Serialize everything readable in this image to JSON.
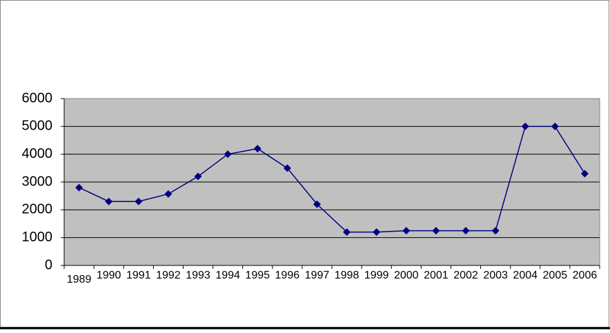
{
  "chart_data": {
    "type": "line",
    "categories": [
      "1989",
      "1990",
      "1991",
      "1992",
      "1993",
      "1994",
      "1995",
      "1996",
      "1997",
      "1998",
      "1999",
      "2000",
      "2001",
      "2002",
      "2003",
      "2004",
      "2005",
      "2006"
    ],
    "series": [
      {
        "color": "#000080",
        "values": [
          2800,
          2300,
          2300,
          2570,
          3200,
          4000,
          4200,
          3500,
          2200,
          1200,
          1200,
          1250,
          1250,
          1250,
          1250,
          5000,
          5000,
          3300
        ]
      }
    ],
    "ylim": [
      0,
      6000
    ],
    "yticks": [
      0,
      1000,
      2000,
      3000,
      4000,
      5000,
      6000
    ],
    "grid": true
  }
}
